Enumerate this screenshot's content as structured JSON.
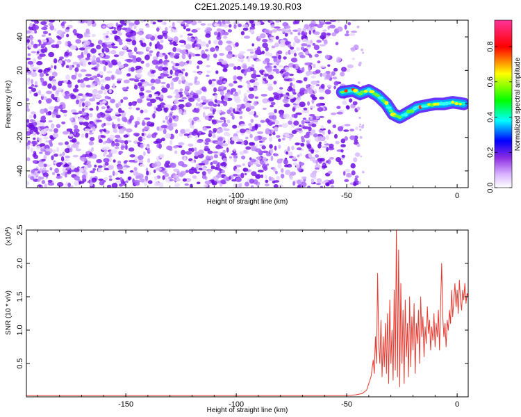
{
  "title": "C2E1.2025.149.19.30.R03",
  "chart_data": [
    {
      "type": "heatmap",
      "xlabel": "Height of straight line (km)",
      "ylabel": "Frequency (Hz)",
      "xlim": [
        -195,
        5
      ],
      "ylim": [
        -50,
        50
      ],
      "xticks": [
        -150,
        -100,
        -50,
        0
      ],
      "yticks": [
        -40,
        -20,
        0,
        20,
        40
      ],
      "xtick_labels": [
        "-150",
        "-100",
        "-50",
        "0"
      ],
      "ytick_labels": [
        "-40",
        "-20",
        "0",
        "20",
        "40"
      ],
      "noise_region_x": [
        -195,
        -45
      ],
      "signal_track": [
        {
          "x": -52,
          "y": 7
        },
        {
          "x": -47,
          "y": 8
        },
        {
          "x": -44,
          "y": 6
        },
        {
          "x": -40,
          "y": 8
        },
        {
          "x": -36,
          "y": 5
        },
        {
          "x": -32,
          "y": 0
        },
        {
          "x": -29,
          "y": -6
        },
        {
          "x": -26,
          "y": -8
        },
        {
          "x": -22,
          "y": -5
        },
        {
          "x": -18,
          "y": -2
        },
        {
          "x": -14,
          "y": -1
        },
        {
          "x": -10,
          "y": 0
        },
        {
          "x": -6,
          "y": 0
        },
        {
          "x": -2,
          "y": 1
        },
        {
          "x": 3,
          "y": 0
        }
      ],
      "colorbar": {
        "label": "Normalized spectral amplitude",
        "range": [
          0,
          0.95
        ],
        "ticks": [
          0.0,
          0.2,
          0.4,
          0.6,
          0.8
        ],
        "tick_labels": [
          "0.0",
          "0.2",
          "0.4",
          "0.6",
          "0.8"
        ],
        "colors": [
          "#ffffff",
          "#9a33ff",
          "#0000ff",
          "#00ffff",
          "#00ff00",
          "#ffff00",
          "#ff0000",
          "#ff33aa"
        ]
      },
      "grid": false
    },
    {
      "type": "line",
      "xlabel": "Height of straight line (km)",
      "ylabel": "SNR (10 * v/v)",
      "y_scale_label": "(x10",
      "y_scale_exponent": "4",
      "y_scale_close": ")",
      "xlim": [
        -195,
        5
      ],
      "ylim": [
        0,
        2.5
      ],
      "xticks": [
        -150,
        -100,
        -50,
        0
      ],
      "yticks": [
        0.5,
        1.0,
        1.5,
        2.0,
        2.5
      ],
      "xtick_labels": [
        "-150",
        "-100",
        "-50",
        "0"
      ],
      "ytick_labels": [
        "0.5",
        "1.0",
        "1.5",
        "2.0",
        "2.5"
      ],
      "series": [
        {
          "color": "#e8392f",
          "points": [
            [
              -195,
              0.02
            ],
            [
              -50,
              0.02
            ],
            [
              -46,
              0.03
            ],
            [
              -43,
              0.05
            ],
            [
              -41,
              0.1
            ],
            [
              -40,
              0.2
            ],
            [
              -39,
              0.3
            ],
            [
              -38,
              0.55
            ],
            [
              -37.5,
              0.35
            ],
            [
              -37,
              0.9
            ],
            [
              -36.5,
              0.5
            ],
            [
              -36,
              1.85
            ],
            [
              -35.5,
              0.8
            ],
            [
              -35,
              0.5
            ],
            [
              -34.5,
              1.15
            ],
            [
              -34,
              0.3
            ],
            [
              -33.5,
              0.9
            ],
            [
              -33,
              0.45
            ],
            [
              -32.5,
              1.1
            ],
            [
              -32,
              0.35
            ],
            [
              -31.5,
              1.25
            ],
            [
              -31,
              0.2
            ],
            [
              -30.5,
              1.45
            ],
            [
              -30,
              0.5
            ],
            [
              -29.5,
              1.0
            ],
            [
              -29,
              0.25
            ],
            [
              -28.5,
              1.6
            ],
            [
              -28,
              0.4
            ],
            [
              -27.5,
              2.52
            ],
            [
              -27,
              0.3
            ],
            [
              -26.5,
              2.2
            ],
            [
              -26,
              0.15
            ],
            [
              -25.5,
              1.7
            ],
            [
              -25,
              0.5
            ],
            [
              -24.5,
              1.3
            ],
            [
              -24,
              0.2
            ],
            [
              -23.5,
              1.45
            ],
            [
              -23,
              0.6
            ],
            [
              -22.5,
              1.1
            ],
            [
              -22,
              0.3
            ],
            [
              -21.5,
              1.5
            ],
            [
              -21,
              0.45
            ],
            [
              -20.5,
              1.2
            ],
            [
              -20,
              0.7
            ],
            [
              -19.5,
              1.4
            ],
            [
              -19,
              0.35
            ],
            [
              -18.5,
              1.1
            ],
            [
              -18,
              0.8
            ],
            [
              -17.5,
              1.3
            ],
            [
              -17,
              0.5
            ],
            [
              -16.5,
              1.5
            ],
            [
              -16,
              0.9
            ],
            [
              -15.5,
              1.2
            ],
            [
              -15,
              0.6
            ],
            [
              -14.5,
              1.05
            ],
            [
              -14,
              0.8
            ],
            [
              -13.5,
              1.35
            ],
            [
              -13,
              0.95
            ],
            [
              -12.5,
              1.15
            ],
            [
              -12,
              0.7
            ],
            [
              -11.5,
              1.05
            ],
            [
              -11,
              0.85
            ],
            [
              -10.5,
              1.25
            ],
            [
              -10,
              0.75
            ],
            [
              -9.5,
              1.1
            ],
            [
              -9,
              0.9
            ],
            [
              -8.5,
              1.3
            ],
            [
              -8,
              0.7
            ],
            [
              -7.5,
              1.4
            ],
            [
              -7,
              2.0
            ],
            [
              -6.5,
              1.2
            ],
            [
              -6,
              0.9
            ],
            [
              -5.5,
              1.1
            ],
            [
              -5,
              0.75
            ],
            [
              -4.5,
              1.15
            ],
            [
              -4,
              1.0
            ],
            [
              -3.5,
              1.3
            ],
            [
              -3,
              1.1
            ],
            [
              -2.5,
              1.6
            ],
            [
              -2,
              1.2
            ],
            [
              -1.5,
              1.45
            ],
            [
              -1,
              1.7
            ],
            [
              -0.5,
              1.35
            ],
            [
              0,
              1.6
            ],
            [
              0.5,
              1.25
            ],
            [
              1,
              1.75
            ],
            [
              1.5,
              1.45
            ],
            [
              2,
              1.3
            ],
            [
              2.5,
              1.6
            ],
            [
              3,
              1.45
            ],
            [
              3.5,
              1.7
            ],
            [
              4,
              1.4
            ],
            [
              4.5,
              1.55
            ],
            [
              5,
              1.5
            ]
          ]
        }
      ],
      "grid": false
    }
  ]
}
